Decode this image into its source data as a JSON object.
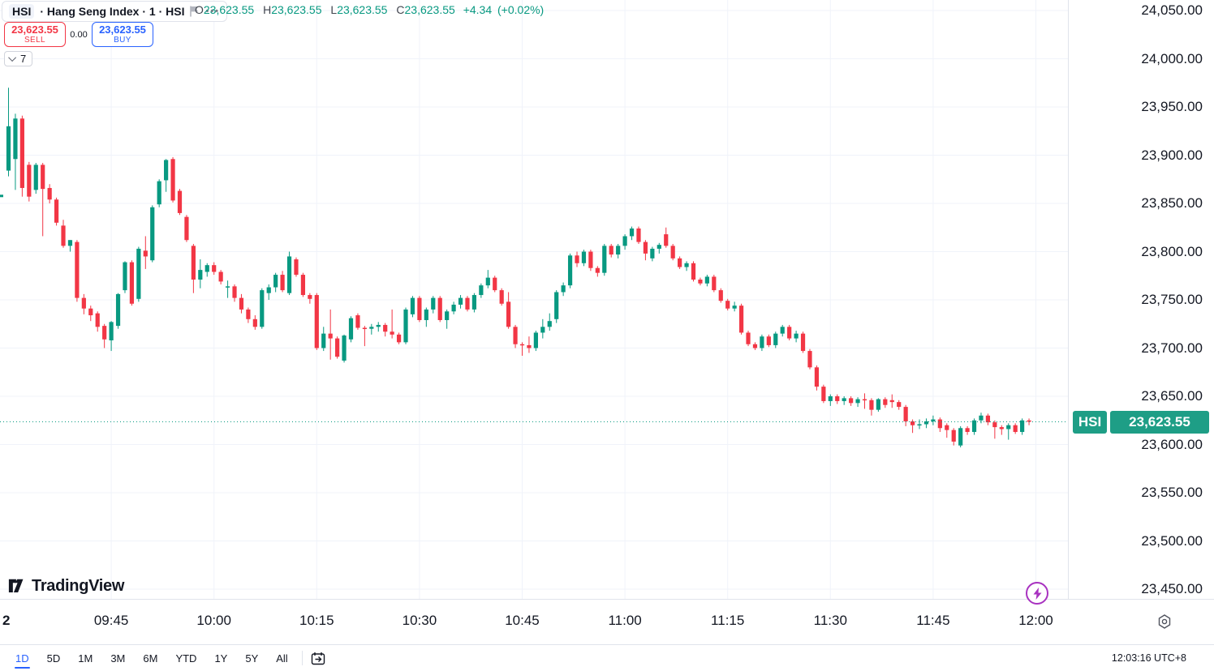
{
  "header": {
    "symbol": "HSI",
    "title_rest": "· Hang Seng Index · 1 · HSI",
    "more_icon": "•••",
    "ohlc": {
      "o_label": "O",
      "o": "23,623.55",
      "h_label": "H",
      "h": "23,623.55",
      "l_label": "L",
      "l": "23,623.55",
      "c_label": "C",
      "c": "23,623.55",
      "change": "+4.34",
      "change_pct": "(+0.02%)"
    }
  },
  "trade": {
    "sell_price": "23,623.55",
    "sell_label": "SELL",
    "spread": "0.00",
    "buy_price": "23,623.55",
    "buy_label": "BUY"
  },
  "interval": {
    "value": "7"
  },
  "price_label": {
    "symbol": "HSI",
    "price": "23,623.55"
  },
  "price_axis": {
    "labels": [
      "24,050.00",
      "24,000.00",
      "23,950.00",
      "23,900.00",
      "23,850.00",
      "23,800.00",
      "23,750.00",
      "23,700.00",
      "23,650.00",
      "23,600.00",
      "23,550.00",
      "23,500.00",
      "23,450.00"
    ],
    "values": [
      24050,
      24000,
      23950,
      23900,
      23850,
      23800,
      23750,
      23700,
      23650,
      23600,
      23550,
      23500,
      23450
    ]
  },
  "time_axis": {
    "date_label": "2",
    "ticks": [
      "09:45",
      "10:00",
      "10:15",
      "10:30",
      "10:45",
      "11:00",
      "11:15",
      "11:30",
      "11:45",
      "12:00"
    ]
  },
  "footer": {
    "logo_text": "TradingView",
    "ranges": [
      "1D",
      "5D",
      "1M",
      "3M",
      "6M",
      "YTD",
      "1Y",
      "5Y",
      "All"
    ],
    "active_range": "1D",
    "clock": "12:03:16 UTC+8"
  },
  "colors": {
    "up": "#089981",
    "down": "#F23645",
    "accent_blue": "#2962FF",
    "label_bg": "#1E9E86",
    "grid": "#F0F3FA",
    "event_purple": "#A832C0"
  },
  "chart_data": {
    "type": "candlestick",
    "title": "HSI Hang Seng Index, 1-minute",
    "symbol": "HSI",
    "interval_minutes": 1,
    "session_start": "09:30",
    "timezone": "UTC+8",
    "last_price": 23623.55,
    "change": 4.34,
    "change_pct": 0.02,
    "ylim": [
      23430,
      24070
    ],
    "x_tick_labels": [
      "09:45",
      "10:00",
      "10:15",
      "10:30",
      "10:45",
      "11:00",
      "11:15",
      "11:30",
      "11:45",
      "12:00"
    ],
    "grid": true,
    "candles_ohlc": [
      [
        23884,
        23970,
        23878,
        23930
      ],
      [
        23896,
        23943,
        23864,
        23938
      ],
      [
        23938,
        23941,
        23857,
        23866
      ],
      [
        23890,
        23893,
        23852,
        23857
      ],
      [
        23864,
        23892,
        23860,
        23890
      ],
      [
        23890,
        23892,
        23816,
        23865
      ],
      [
        23866,
        23870,
        23850,
        23854
      ],
      [
        23854,
        23856,
        23827,
        23830
      ],
      [
        23827,
        23833,
        23804,
        23806
      ],
      [
        23806,
        23812,
        23800,
        23812
      ],
      [
        23810,
        23812,
        23748,
        23752
      ],
      [
        23752,
        23756,
        23735,
        23741
      ],
      [
        23741,
        23744,
        23728,
        23734
      ],
      [
        23736,
        23738,
        23717,
        23722
      ],
      [
        23723,
        23725,
        23700,
        23709
      ],
      [
        23708,
        23728,
        23697,
        23727
      ],
      [
        23723,
        23757,
        23720,
        23756
      ],
      [
        23760,
        23790,
        23757,
        23789
      ],
      [
        23789,
        23791,
        23744,
        23746
      ],
      [
        23751,
        23805,
        23748,
        23803
      ],
      [
        23801,
        23816,
        23782,
        23795
      ],
      [
        23791,
        23848,
        23789,
        23846
      ],
      [
        23849,
        23875,
        23846,
        23873
      ],
      [
        23874,
        23896,
        23862,
        23895
      ],
      [
        23896,
        23898,
        23851,
        23853
      ],
      [
        23863,
        23865,
        23838,
        23840
      ],
      [
        23836,
        23838,
        23810,
        23812
      ],
      [
        23806,
        23808,
        23757,
        23771
      ],
      [
        23771,
        23792,
        23762,
        23781
      ],
      [
        23779,
        23788,
        23774,
        23786
      ],
      [
        23786,
        23789,
        23776,
        23779
      ],
      [
        23779,
        23781,
        23766,
        23769
      ],
      [
        23764,
        23770,
        23752,
        23764
      ],
      [
        23764,
        23766,
        23748,
        23752
      ],
      [
        23752,
        23756,
        23736,
        23740
      ],
      [
        23740,
        23742,
        23726,
        23730
      ],
      [
        23730,
        23734,
        23719,
        23722
      ],
      [
        23722,
        23762,
        23720,
        23760
      ],
      [
        23757,
        23766,
        23750,
        23763
      ],
      [
        23763,
        23778,
        23758,
        23776
      ],
      [
        23776,
        23780,
        23758,
        23760
      ],
      [
        23757,
        23800,
        23755,
        23795
      ],
      [
        23792,
        23794,
        23774,
        23776
      ],
      [
        23776,
        23778,
        23753,
        23755
      ],
      [
        23755,
        23757,
        23746,
        23751
      ],
      [
        23755,
        23757,
        23698,
        23700
      ],
      [
        23700,
        23722,
        23697,
        23715
      ],
      [
        23715,
        23740,
        23688,
        23710
      ],
      [
        23710,
        23712,
        23689,
        23691
      ],
      [
        23687,
        23714,
        23685,
        23713
      ],
      [
        23709,
        23733,
        23706,
        23731
      ],
      [
        23734,
        23736,
        23719,
        23721
      ],
      [
        23721,
        23723,
        23702,
        23720
      ],
      [
        23720,
        23725,
        23714,
        23722
      ],
      [
        23722,
        23727,
        23717,
        23724
      ],
      [
        23724,
        23726,
        23712,
        23717
      ],
      [
        23717,
        23740,
        23710,
        23714
      ],
      [
        23714,
        23716,
        23704,
        23706
      ],
      [
        23706,
        23742,
        23704,
        23740
      ],
      [
        23735,
        23754,
        23732,
        23752
      ],
      [
        23752,
        23754,
        23727,
        23729
      ],
      [
        23729,
        23742,
        23722,
        23740
      ],
      [
        23740,
        23754,
        23736,
        23752
      ],
      [
        23752,
        23754,
        23727,
        23729
      ],
      [
        23729,
        23740,
        23720,
        23738
      ],
      [
        23738,
        23748,
        23735,
        23745
      ],
      [
        23745,
        23755,
        23741,
        23752
      ],
      [
        23752,
        23754,
        23738,
        23740
      ],
      [
        23740,
        23757,
        23737,
        23755
      ],
      [
        23755,
        23767,
        23752,
        23765
      ],
      [
        23765,
        23781,
        23762,
        23773
      ],
      [
        23773,
        23775,
        23758,
        23760
      ],
      [
        23760,
        23762,
        23744,
        23746
      ],
      [
        23748,
        23758,
        23720,
        23722
      ],
      [
        23722,
        23724,
        23700,
        23704
      ],
      [
        23704,
        23706,
        23692,
        23703
      ],
      [
        23703,
        23712,
        23695,
        23700
      ],
      [
        23700,
        23718,
        23697,
        23716
      ],
      [
        23716,
        23730,
        23710,
        23722
      ],
      [
        23722,
        23736,
        23718,
        23728
      ],
      [
        23730,
        23760,
        23726,
        23758
      ],
      [
        23758,
        23768,
        23754,
        23765
      ],
      [
        23765,
        23798,
        23762,
        23796
      ],
      [
        23796,
        23800,
        23784,
        23788
      ],
      [
        23788,
        23802,
        23785,
        23800
      ],
      [
        23800,
        23802,
        23780,
        23783
      ],
      [
        23783,
        23785,
        23774,
        23778
      ],
      [
        23778,
        23808,
        23775,
        23806
      ],
      [
        23806,
        23808,
        23794,
        23797
      ],
      [
        23797,
        23808,
        23793,
        23806
      ],
      [
        23806,
        23818,
        23802,
        23816
      ],
      [
        23816,
        23826,
        23812,
        23824
      ],
      [
        23824,
        23826,
        23808,
        23810
      ],
      [
        23810,
        23812,
        23791,
        23798
      ],
      [
        23793,
        23805,
        23790,
        23803
      ],
      [
        23803,
        23809,
        23798,
        23807
      ],
      [
        23818,
        23825,
        23804,
        23806
      ],
      [
        23806,
        23808,
        23791,
        23793
      ],
      [
        23793,
        23795,
        23782,
        23784
      ],
      [
        23784,
        23790,
        23780,
        23788
      ],
      [
        23788,
        23790,
        23769,
        23771
      ],
      [
        23771,
        23773,
        23765,
        23767
      ],
      [
        23767,
        23776,
        23764,
        23774
      ],
      [
        23774,
        23776,
        23758,
        23760
      ],
      [
        23760,
        23762,
        23747,
        23749
      ],
      [
        23749,
        23751,
        23739,
        23741
      ],
      [
        23741,
        23748,
        23738,
        23744
      ],
      [
        23744,
        23746,
        23714,
        23716
      ],
      [
        23716,
        23718,
        23702,
        23704
      ],
      [
        23704,
        23706,
        23698,
        23700
      ],
      [
        23700,
        23714,
        23697,
        23712
      ],
      [
        23712,
        23714,
        23701,
        23703
      ],
      [
        23703,
        23717,
        23700,
        23715
      ],
      [
        23715,
        23724,
        23712,
        23722
      ],
      [
        23722,
        23724,
        23708,
        23710
      ],
      [
        23710,
        23718,
        23706,
        23715
      ],
      [
        23715,
        23717,
        23695,
        23697
      ],
      [
        23697,
        23699,
        23678,
        23680
      ],
      [
        23680,
        23682,
        23656,
        23660
      ],
      [
        23660,
        23662,
        23643,
        23645
      ],
      [
        23645,
        23652,
        23640,
        23650
      ],
      [
        23650,
        23652,
        23642,
        23645
      ],
      [
        23645,
        23650,
        23641,
        23648
      ],
      [
        23648,
        23650,
        23640,
        23643
      ],
      [
        23643,
        23649,
        23639,
        23647
      ],
      [
        23647,
        23653,
        23637,
        23646
      ],
      [
        23646,
        23648,
        23630,
        23636
      ],
      [
        23636,
        23648,
        23634,
        23647
      ],
      [
        23647,
        23649,
        23638,
        23641
      ],
      [
        23646,
        23652,
        23638,
        23644
      ],
      [
        23644,
        23646,
        23636,
        23639
      ],
      [
        23639,
        23641,
        23619,
        23624
      ],
      [
        23624,
        23626,
        23612,
        23620
      ],
      [
        23620,
        23626,
        23616,
        23621
      ],
      [
        23621,
        23627,
        23617,
        23624
      ],
      [
        23624,
        23630,
        23620,
        23626
      ],
      [
        23626,
        23628,
        23613,
        23617
      ],
      [
        23620,
        23622,
        23607,
        23615
      ],
      [
        23615,
        23617,
        23599,
        23603
      ],
      [
        23599,
        23619,
        23597,
        23617
      ],
      [
        23617,
        23619,
        23610,
        23613
      ],
      [
        23613,
        23627,
        23610,
        23625
      ],
      [
        23625,
        23633,
        23622,
        23630
      ],
      [
        23630,
        23632,
        23620,
        23623
      ],
      [
        23623,
        23625,
        23606,
        23618
      ],
      [
        23618,
        23620,
        23610,
        23616
      ],
      [
        23616,
        23622,
        23605,
        23620
      ],
      [
        23620,
        23622,
        23611,
        23613
      ],
      [
        23613,
        23627,
        23610,
        23625
      ],
      [
        23625,
        23627,
        23620,
        23623.55
      ]
    ]
  }
}
